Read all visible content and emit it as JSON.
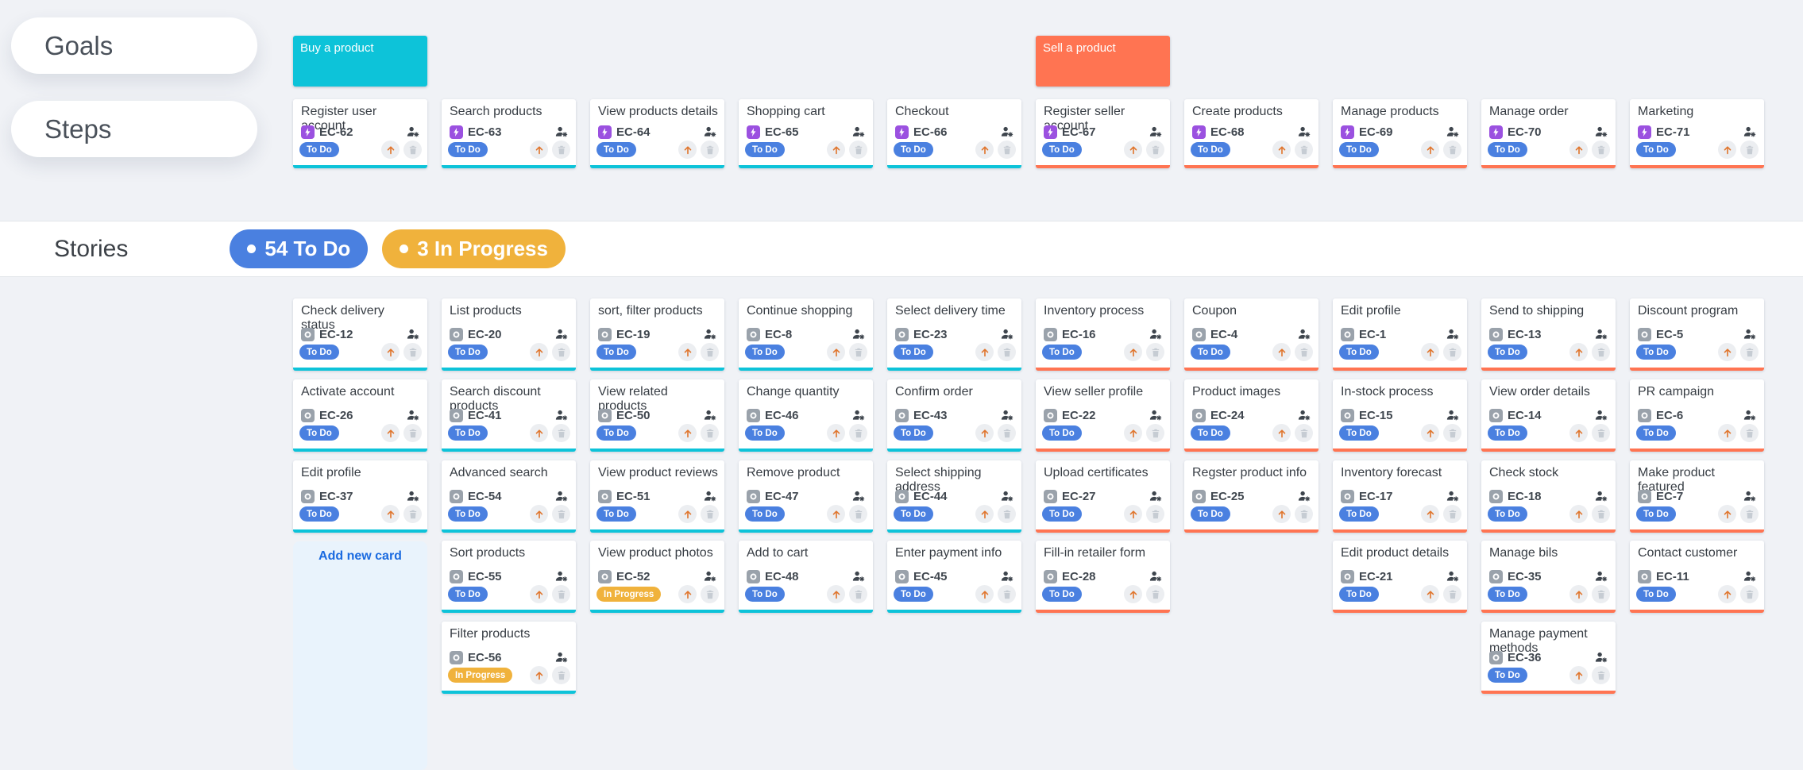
{
  "labels": {
    "goals": "Goals",
    "steps": "Steps",
    "stories": "Stories",
    "add_new_card": "Add new card"
  },
  "badges": [
    {
      "name": "todo-count",
      "text": "54 To Do",
      "color": "#4a80e0"
    },
    {
      "name": "in-progress-count",
      "text": "3 In Progress",
      "color": "#f0b23c"
    }
  ],
  "colors": {
    "buy_tree": "#0dc3d9",
    "sell_tree": "#ff7452",
    "status_todo": "#4a80e0",
    "status_in_progress": "#f0b23c",
    "step_type_icon": "#9b51e0",
    "story_type_icon": "#9aa2ab",
    "arrow": "#e0762e",
    "link": "#1b6be0"
  },
  "icons": {
    "step_type": "bolt-icon",
    "story_type": "ring-icon",
    "assignee": "assign-user-icon",
    "promote": "up-arrow-icon",
    "remove": "trash-icon"
  },
  "goals": [
    {
      "title": "Buy a product",
      "col": 1,
      "tree": "buy"
    },
    {
      "title": "Sell a product",
      "col": 6,
      "tree": "sell"
    }
  ],
  "steps": [
    {
      "title": "Register user account",
      "id": "EC-62",
      "status": "To Do",
      "col": 1
    },
    {
      "title": "Search products",
      "id": "EC-63",
      "status": "To Do",
      "col": 2
    },
    {
      "title": "View products details",
      "id": "EC-64",
      "status": "To Do",
      "col": 3
    },
    {
      "title": "Shopping cart",
      "id": "EC-65",
      "status": "To Do",
      "col": 4
    },
    {
      "title": "Checkout",
      "id": "EC-66",
      "status": "To Do",
      "col": 5
    },
    {
      "title": "Register seller account",
      "id": "EC-67",
      "status": "To Do",
      "col": 6
    },
    {
      "title": "Create products",
      "id": "EC-68",
      "status": "To Do",
      "col": 7
    },
    {
      "title": "Manage products",
      "id": "EC-69",
      "status": "To Do",
      "col": 8
    },
    {
      "title": "Manage order",
      "id": "EC-70",
      "status": "To Do",
      "col": 9
    },
    {
      "title": "Marketing",
      "id": "EC-71",
      "status": "To Do",
      "col": 10
    }
  ],
  "stories": [
    {
      "title": "Check delivery status",
      "id": "EC-12",
      "status": "To Do",
      "row": 1,
      "col": 1
    },
    {
      "title": "List products",
      "id": "EC-20",
      "status": "To Do",
      "row": 1,
      "col": 2
    },
    {
      "title": "sort, filter products",
      "id": "EC-19",
      "status": "To Do",
      "row": 1,
      "col": 3
    },
    {
      "title": "Continue shopping",
      "id": "EC-8",
      "status": "To Do",
      "row": 1,
      "col": 4
    },
    {
      "title": "Select delivery time",
      "id": "EC-23",
      "status": "To Do",
      "row": 1,
      "col": 5
    },
    {
      "title": "Inventory process",
      "id": "EC-16",
      "status": "To Do",
      "row": 1,
      "col": 6
    },
    {
      "title": "Coupon",
      "id": "EC-4",
      "status": "To Do",
      "row": 1,
      "col": 7
    },
    {
      "title": "Edit profile",
      "id": "EC-1",
      "status": "To Do",
      "row": 1,
      "col": 8
    },
    {
      "title": "Send to shipping",
      "id": "EC-13",
      "status": "To Do",
      "row": 1,
      "col": 9
    },
    {
      "title": "Discount program",
      "id": "EC-5",
      "status": "To Do",
      "row": 1,
      "col": 10
    },
    {
      "title": "Activate account",
      "id": "EC-26",
      "status": "To Do",
      "row": 2,
      "col": 1
    },
    {
      "title": "Search discount products",
      "id": "EC-41",
      "status": "To Do",
      "row": 2,
      "col": 2
    },
    {
      "title": "View related products",
      "id": "EC-50",
      "status": "To Do",
      "row": 2,
      "col": 3
    },
    {
      "title": "Change quantity",
      "id": "EC-46",
      "status": "To Do",
      "row": 2,
      "col": 4
    },
    {
      "title": "Confirm order",
      "id": "EC-43",
      "status": "To Do",
      "row": 2,
      "col": 5
    },
    {
      "title": "View seller profile",
      "id": "EC-22",
      "status": "To Do",
      "row": 2,
      "col": 6
    },
    {
      "title": "Product images",
      "id": "EC-24",
      "status": "To Do",
      "row": 2,
      "col": 7
    },
    {
      "title": "In-stock process",
      "id": "EC-15",
      "status": "To Do",
      "row": 2,
      "col": 8
    },
    {
      "title": "View order details",
      "id": "EC-14",
      "status": "To Do",
      "row": 2,
      "col": 9
    },
    {
      "title": "PR campaign",
      "id": "EC-6",
      "status": "To Do",
      "row": 2,
      "col": 10
    },
    {
      "title": "Edit profile",
      "id": "EC-37",
      "status": "To Do",
      "row": 3,
      "col": 1
    },
    {
      "title": "Advanced search",
      "id": "EC-54",
      "status": "To Do",
      "row": 3,
      "col": 2
    },
    {
      "title": "View product reviews",
      "id": "EC-51",
      "status": "To Do",
      "row": 3,
      "col": 3
    },
    {
      "title": "Remove product",
      "id": "EC-47",
      "status": "To Do",
      "row": 3,
      "col": 4
    },
    {
      "title": "Select shipping address",
      "id": "EC-44",
      "status": "To Do",
      "row": 3,
      "col": 5
    },
    {
      "title": "Upload certificates",
      "id": "EC-27",
      "status": "To Do",
      "row": 3,
      "col": 6
    },
    {
      "title": "Regster product info",
      "id": "EC-25",
      "status": "To Do",
      "row": 3,
      "col": 7
    },
    {
      "title": "Inventory forecast",
      "id": "EC-17",
      "status": "To Do",
      "row": 3,
      "col": 8
    },
    {
      "title": "Check stock",
      "id": "EC-18",
      "status": "To Do",
      "row": 3,
      "col": 9
    },
    {
      "title": "Make product featured",
      "id": "EC-7",
      "status": "To Do",
      "row": 3,
      "col": 10
    },
    {
      "title": "Sort products",
      "id": "EC-55",
      "status": "To Do",
      "row": 4,
      "col": 2
    },
    {
      "title": "View product photos",
      "id": "EC-52",
      "status": "In Progress",
      "row": 4,
      "col": 3
    },
    {
      "title": "Add to cart",
      "id": "EC-48",
      "status": "To Do",
      "row": 4,
      "col": 4
    },
    {
      "title": "Enter payment info",
      "id": "EC-45",
      "status": "To Do",
      "row": 4,
      "col": 5
    },
    {
      "title": "Fill-in retailer form",
      "id": "EC-28",
      "status": "To Do",
      "row": 4,
      "col": 6
    },
    {
      "title": "Edit product details",
      "id": "EC-21",
      "status": "To Do",
      "row": 4,
      "col": 8
    },
    {
      "title": "Manage bils",
      "id": "EC-35",
      "status": "To Do",
      "row": 4,
      "col": 9
    },
    {
      "title": "Contact customer",
      "id": "EC-11",
      "status": "To Do",
      "row": 4,
      "col": 10
    },
    {
      "title": "Filter products",
      "id": "EC-56",
      "status": "In Progress",
      "row": 5,
      "col": 2
    },
    {
      "title": "Manage payment methods",
      "id": "EC-36",
      "status": "To Do",
      "row": 5,
      "col": 9
    }
  ]
}
